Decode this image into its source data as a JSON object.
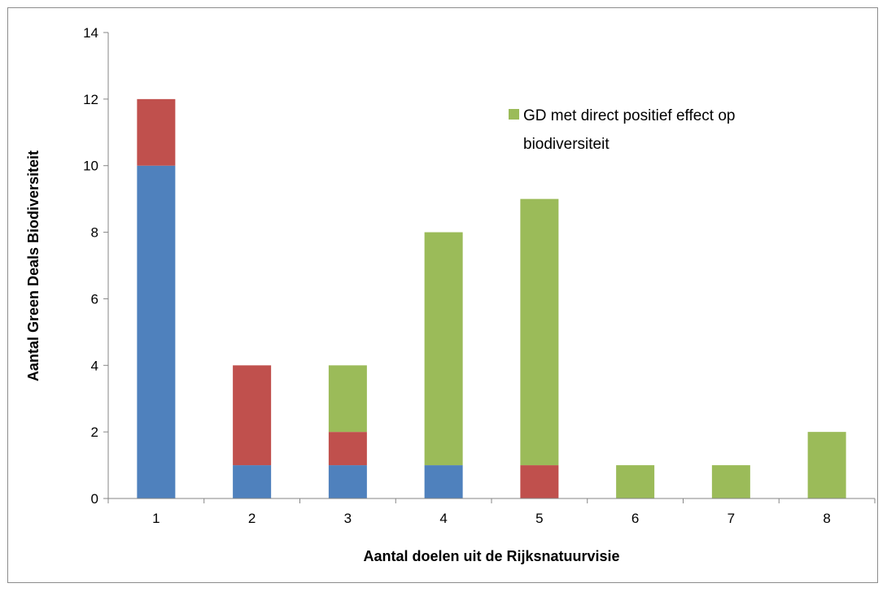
{
  "chart_data": {
    "type": "bar",
    "stacked": true,
    "categories": [
      "1",
      "2",
      "3",
      "4",
      "5",
      "6",
      "7",
      "8"
    ],
    "series": [
      {
        "name": "",
        "color": "#4f81bd",
        "values": [
          10,
          1,
          1,
          1,
          0,
          0,
          0,
          0
        ]
      },
      {
        "name": "",
        "color": "#c0504d",
        "values": [
          2,
          3,
          1,
          0,
          1,
          0,
          0,
          0
        ]
      },
      {
        "name": "GD met direct positief effect op biodiversiteit",
        "color": "#9bbb59",
        "values": [
          0,
          0,
          2,
          7,
          8,
          1,
          1,
          2
        ]
      }
    ],
    "xlabel": "Aantal doelen uit de Rijksnatuurvisie",
    "ylabel": "Aantal Green Deals Biodiversiteit",
    "ylim": [
      0,
      14
    ],
    "yticks": [
      0,
      2,
      4,
      6,
      8,
      10,
      12,
      14
    ],
    "grid": false,
    "legend": {
      "placement": "top-right",
      "lines": [
        "GD met direct positief effect op",
        "biodiversiteit"
      ]
    }
  }
}
